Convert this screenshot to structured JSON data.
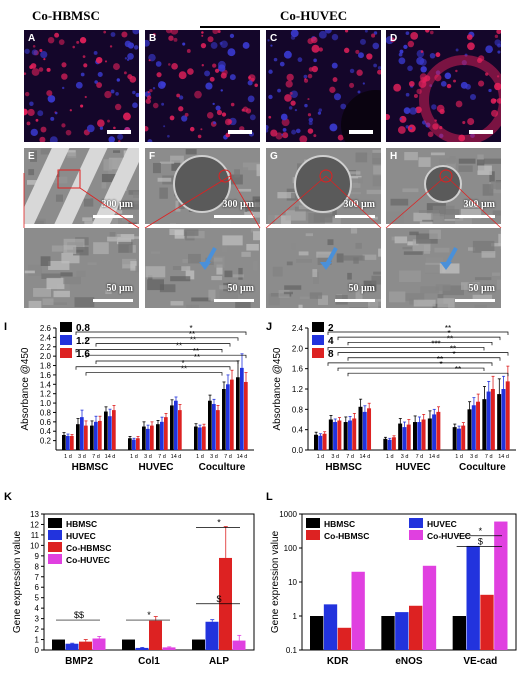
{
  "headers": {
    "left": "Co-HBMSC",
    "right": "Co-HUVEC"
  },
  "image_panels": [
    {
      "label": "A",
      "kind": "fluorescence"
    },
    {
      "label": "B",
      "kind": "fluorescence"
    },
    {
      "label": "C",
      "kind": "fluorescence"
    },
    {
      "label": "D",
      "kind": "fluorescence"
    },
    {
      "label": "E",
      "kind": "sem",
      "scale": "300 μm"
    },
    {
      "label": "F",
      "kind": "sem",
      "scale": "300 μm"
    },
    {
      "label": "G",
      "kind": "sem",
      "scale": "300 μm"
    },
    {
      "label": "H",
      "kind": "sem",
      "scale": "300 μm"
    },
    {
      "label": "",
      "kind": "sem-zoom",
      "scale": "50 μm"
    },
    {
      "label": "",
      "kind": "sem-zoom",
      "scale": "50 μm"
    },
    {
      "label": "",
      "kind": "sem-zoom",
      "scale": "50 μm"
    },
    {
      "label": "",
      "kind": "sem-zoom",
      "scale": "50 μm"
    }
  ],
  "colors": {
    "black": "#000000",
    "blue": "#2233dd",
    "red": "#dd2222",
    "magenta": "#e040e0",
    "fluor_red": "#e0205a",
    "fluor_blue": "#3a3ad0",
    "arrow": "#4a90d9"
  },
  "chart_data": [
    {
      "panel": "I",
      "type": "bar",
      "ylabel": "Absorbance @450",
      "ylim": [
        0,
        2.6
      ],
      "yticks": [
        "0.2",
        "0.4",
        "0.6",
        "0.8",
        "1.0",
        "1.2",
        "1.4",
        "1.6",
        "1.8",
        "2.0",
        "2.2",
        "2.4",
        "2.6"
      ],
      "groups": [
        "HBMSC",
        "HUVEC",
        "Coculture"
      ],
      "days": [
        "1 d",
        "3 d",
        "7 d",
        "14 d"
      ],
      "series": [
        {
          "name": "0.8",
          "values": [
            [
              0.32,
              0.55,
              0.52,
              0.82
            ],
            [
              0.25,
              0.5,
              0.55,
              0.95
            ],
            [
              0.5,
              1.05,
              1.3,
              1.55
            ]
          ],
          "errors": [
            [
              0.05,
              0.12,
              0.1,
              0.1
            ],
            [
              0.04,
              0.1,
              0.08,
              0.12
            ],
            [
              0.06,
              0.12,
              0.15,
              0.35
            ]
          ]
        },
        {
          "name": "1.2",
          "values": [
            [
              0.3,
              0.7,
              0.6,
              0.72
            ],
            [
              0.22,
              0.45,
              0.6,
              1.05
            ],
            [
              0.48,
              0.98,
              1.4,
              1.75
            ]
          ],
          "errors": [
            [
              0.04,
              0.15,
              0.12,
              0.15
            ],
            [
              0.03,
              0.08,
              0.1,
              0.08
            ],
            [
              0.05,
              0.1,
              0.2,
              0.3
            ]
          ]
        },
        {
          "name": "1.6",
          "values": [
            [
              0.3,
              0.52,
              0.62,
              0.85
            ],
            [
              0.25,
              0.52,
              0.7,
              0.85
            ],
            [
              0.5,
              0.85,
              1.5,
              1.45
            ]
          ],
          "errors": [
            [
              0.03,
              0.1,
              0.1,
              0.1
            ],
            [
              0.04,
              0.08,
              0.08,
              0.12
            ],
            [
              0.05,
              0.1,
              0.2,
              0.2
            ]
          ]
        }
      ],
      "sig_marks": [
        "*",
        "**",
        "**",
        "**",
        "**",
        "**",
        "*",
        "**"
      ]
    },
    {
      "panel": "J",
      "type": "bar",
      "ylabel": "Absorbance @450",
      "ylim": [
        0,
        2.4
      ],
      "yticks": [
        "0.0",
        "0.4",
        "0.8",
        "1.2",
        "1.6",
        "2.0",
        "2.4"
      ],
      "groups": [
        "HBMSC",
        "HUVEC",
        "Coculture"
      ],
      "days": [
        "1 d",
        "3 d",
        "7 d",
        "14 d"
      ],
      "series": [
        {
          "name": "2",
          "values": [
            [
              0.3,
              0.6,
              0.55,
              0.85
            ],
            [
              0.22,
              0.52,
              0.55,
              0.62
            ],
            [
              0.45,
              0.8,
              1.0,
              1.1
            ]
          ],
          "errors": [
            [
              0.05,
              0.08,
              0.1,
              0.15
            ],
            [
              0.03,
              0.1,
              0.12,
              0.15
            ],
            [
              0.06,
              0.15,
              0.25,
              0.3
            ]
          ]
        },
        {
          "name": "4",
          "values": [
            [
              0.28,
              0.55,
              0.58,
              0.75
            ],
            [
              0.2,
              0.45,
              0.55,
              0.7
            ],
            [
              0.42,
              0.88,
              1.15,
              1.2
            ]
          ],
          "errors": [
            [
              0.04,
              0.06,
              0.08,
              0.12
            ],
            [
              0.03,
              0.1,
              0.1,
              0.1
            ],
            [
              0.05,
              0.15,
              0.2,
              0.25
            ]
          ]
        },
        {
          "name": "8",
          "values": [
            [
              0.32,
              0.58,
              0.62,
              0.82
            ],
            [
              0.25,
              0.5,
              0.6,
              0.75
            ],
            [
              0.48,
              0.95,
              1.2,
              1.35
            ]
          ],
          "errors": [
            [
              0.04,
              0.06,
              0.1,
              0.1
            ],
            [
              0.03,
              0.1,
              0.1,
              0.1
            ],
            [
              0.06,
              0.15,
              0.25,
              0.3
            ]
          ]
        }
      ],
      "sig_marks": [
        "**",
        "*",
        "**",
        "***",
        "**",
        "*",
        "**",
        "*",
        "**"
      ]
    },
    {
      "panel": "K",
      "type": "bar",
      "ylabel": "Gene expression value",
      "ylim": [
        0,
        13
      ],
      "yticks": [
        "0",
        "1",
        "2",
        "3",
        "4",
        "5",
        "6",
        "7",
        "8",
        "9",
        "10",
        "11",
        "12",
        "13"
      ],
      "categories": [
        "BMP2",
        "Col1",
        "ALP"
      ],
      "series": [
        {
          "name": "HBMSC",
          "values": [
            1.0,
            1.0,
            1.0
          ],
          "errors": [
            0,
            0,
            0
          ]
        },
        {
          "name": "HUVEC",
          "values": [
            0.6,
            0.2,
            2.7
          ],
          "errors": [
            0.05,
            0.05,
            0.2
          ]
        },
        {
          "name": "Co-HBMSC",
          "values": [
            0.8,
            2.8,
            8.8
          ],
          "errors": [
            0.2,
            0.4,
            3.0
          ]
        },
        {
          "name": "Co-HUVEC",
          "values": [
            1.1,
            0.25,
            0.9
          ],
          "errors": [
            0.2,
            0.05,
            0.5
          ]
        }
      ],
      "sig_marks": [
        "$$",
        "*",
        "$",
        "*"
      ]
    },
    {
      "panel": "L",
      "type": "bar",
      "ylabel": "Gene expression value",
      "yscale": "log",
      "ylim": [
        0.1,
        1000
      ],
      "yticks": [
        "0.1",
        "1",
        "10",
        "100",
        "1000"
      ],
      "categories": [
        "KDR",
        "eNOS",
        "VE-cad"
      ],
      "series": [
        {
          "name": "HBMSC",
          "values": [
            1,
            1,
            1
          ]
        },
        {
          "name": "HUVEC",
          "values": [
            2.2,
            1.3,
            115
          ]
        },
        {
          "name": "Co-HBMSC",
          "values": [
            0.45,
            2.0,
            4.2
          ]
        },
        {
          "name": "Co-HUVEC",
          "values": [
            20,
            30,
            600
          ]
        }
      ],
      "sig_marks": [
        "*",
        "$"
      ]
    }
  ]
}
